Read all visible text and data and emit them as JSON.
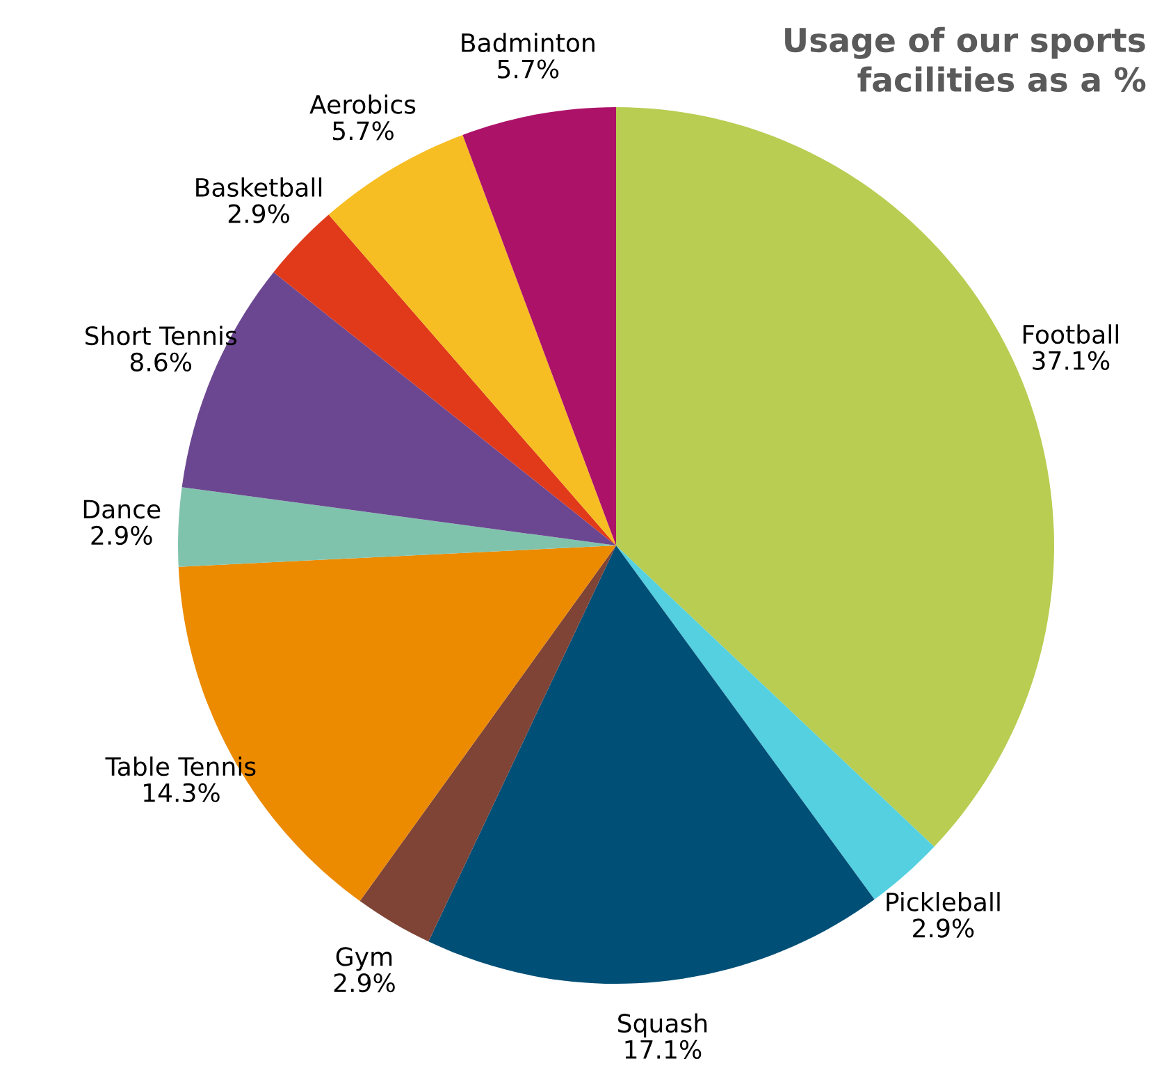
{
  "chart_data": {
    "type": "pie",
    "title": "Usage of our sports\nfacilities as a %",
    "categories": [
      "Football",
      "Pickleball",
      "Squash",
      "Gym",
      "Table Tennis",
      "Dance",
      "Short Tennis",
      "Basketball",
      "Aerobics",
      "Badminton"
    ],
    "values": [
      37.1,
      2.9,
      17.1,
      2.9,
      14.3,
      2.9,
      8.6,
      2.9,
      5.7,
      5.7
    ],
    "value_labels": [
      "37.1%",
      "2.9%",
      "17.1%",
      "2.9%",
      "14.3%",
      "2.9%",
      "8.6%",
      "2.9%",
      "5.7%",
      "5.7%"
    ],
    "colors": [
      "#b8cd52",
      "#55d0e0",
      "#004f76",
      "#7f4436",
      "#ec8a00",
      "#80c3ad",
      "#6c4791",
      "#e03a1a",
      "#f6be23",
      "#ad1269"
    ]
  }
}
